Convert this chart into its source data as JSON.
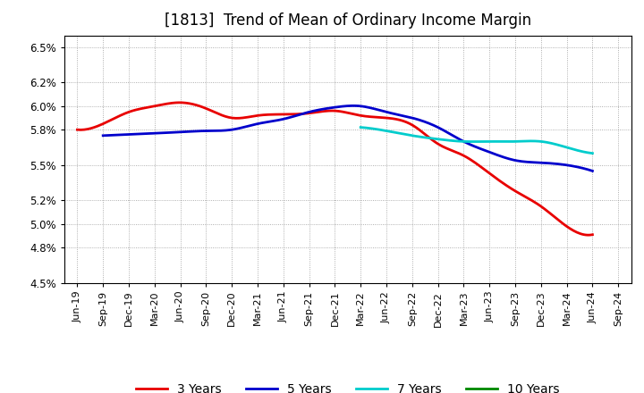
{
  "title": "[1813]  Trend of Mean of Ordinary Income Margin",
  "x_labels": [
    "Jun-19",
    "Sep-19",
    "Dec-19",
    "Mar-20",
    "Jun-20",
    "Sep-20",
    "Dec-20",
    "Mar-21",
    "Jun-21",
    "Sep-21",
    "Dec-21",
    "Mar-22",
    "Jun-22",
    "Sep-22",
    "Dec-22",
    "Mar-23",
    "Jun-23",
    "Sep-23",
    "Dec-23",
    "Mar-24",
    "Jun-24",
    "Sep-24"
  ],
  "ylim": [
    0.045,
    0.066
  ],
  "ytick_vals": [
    0.045,
    0.048,
    0.05,
    0.052,
    0.055,
    0.058,
    0.06,
    0.062,
    0.065
  ],
  "ytick_labels": [
    "4.5%",
    "4.8%",
    "5.0%",
    "5.2%",
    "5.5%",
    "5.8%",
    "6.0%",
    "6.2%",
    "6.5%"
  ],
  "series_3y_x": [
    0,
    1,
    2,
    3,
    4,
    5,
    6,
    7,
    8,
    9,
    10,
    11,
    12,
    13,
    14,
    15,
    16,
    17,
    18,
    19,
    20
  ],
  "series_3y_y": [
    0.058,
    0.0585,
    0.0595,
    0.06,
    0.0603,
    0.0598,
    0.059,
    0.0592,
    0.0593,
    0.0594,
    0.0596,
    0.0592,
    0.059,
    0.0584,
    0.0568,
    0.0558,
    0.0543,
    0.0528,
    0.0515,
    0.0498,
    0.0491
  ],
  "series_5y_x": [
    1,
    2,
    3,
    4,
    5,
    6,
    7,
    8,
    9,
    10,
    11,
    12,
    13,
    14,
    15,
    16,
    17,
    18,
    19,
    20
  ],
  "series_5y_y": [
    0.0575,
    0.0576,
    0.0577,
    0.0578,
    0.0579,
    0.058,
    0.0585,
    0.0589,
    0.0595,
    0.0599,
    0.06,
    0.0595,
    0.059,
    0.0582,
    0.057,
    0.0561,
    0.0554,
    0.0552,
    0.055,
    0.0545
  ],
  "series_7y_x": [
    11,
    12,
    13,
    14,
    15,
    16,
    17,
    18,
    19,
    20
  ],
  "series_7y_y": [
    0.0582,
    0.0579,
    0.0575,
    0.0572,
    0.057,
    0.057,
    0.057,
    0.057,
    0.0565,
    0.056
  ],
  "color_3y": "#e80000",
  "color_5y": "#0000cc",
  "color_7y": "#00cccc",
  "color_10y": "#008800",
  "legend_labels": [
    "3 Years",
    "5 Years",
    "7 Years",
    "10 Years"
  ],
  "background_color": "#ffffff",
  "title_fontsize": 12,
  "axis_fontsize": 8.5,
  "legend_fontsize": 10
}
